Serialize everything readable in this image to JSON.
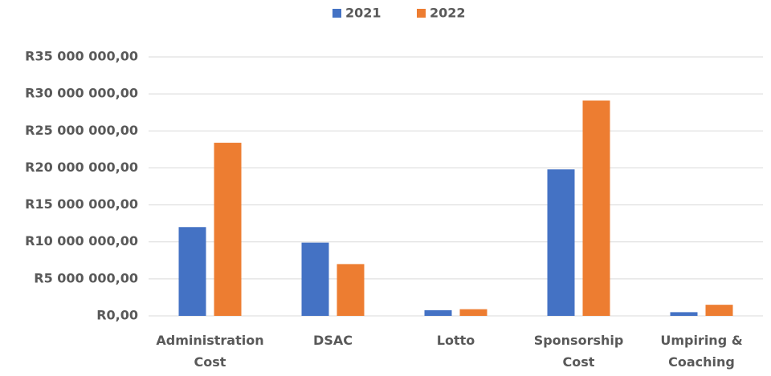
{
  "chart_data": {
    "type": "bar",
    "categories": [
      "Administration Cost",
      "DSAC",
      "Lotto",
      "Sponsorship Cost",
      "Umpiring & Coaching"
    ],
    "series": [
      {
        "name": "2021",
        "color": "#4472c4",
        "values": [
          12000000,
          9900000,
          760000,
          19800000,
          500000
        ]
      },
      {
        "name": "2022",
        "color": "#ed7d31",
        "values": [
          23400000,
          7000000,
          900000,
          29100000,
          1500000
        ]
      }
    ],
    "ylim": [
      0,
      35000000
    ],
    "yticks": [
      {
        "value": 0,
        "label": "R0,00"
      },
      {
        "value": 5000000,
        "label": "R5 000 000,00"
      },
      {
        "value": 10000000,
        "label": "R10 000 000,00"
      },
      {
        "value": 15000000,
        "label": "R15 000 000,00"
      },
      {
        "value": 20000000,
        "label": "R20 000 000,00"
      },
      {
        "value": 25000000,
        "label": "R25 000 000,00"
      },
      {
        "value": 30000000,
        "label": "R30 000 000,00"
      },
      {
        "value": 35000000,
        "label": "R35 000 000,00"
      }
    ],
    "grid": true,
    "legend": "top"
  }
}
